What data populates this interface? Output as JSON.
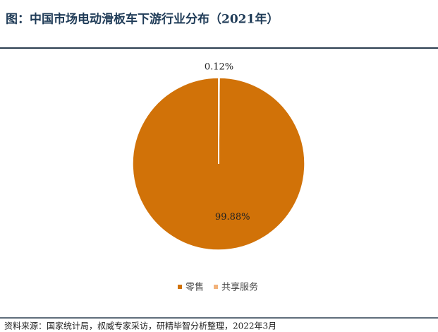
{
  "title": "图：中国市场电动滑板车下游行业分布（2021年）",
  "chart_data": {
    "type": "pie",
    "categories": [
      "零售",
      "共享服务"
    ],
    "values": [
      99.88,
      0.12
    ],
    "value_labels": [
      "99.88%",
      "0.12%"
    ],
    "colors": [
      "#d17208",
      "#f2b27a"
    ],
    "legend": "bottom"
  },
  "source": "资料来源：国家统计局，叔威专家采访，研精毕智分析整理，2022年3月"
}
